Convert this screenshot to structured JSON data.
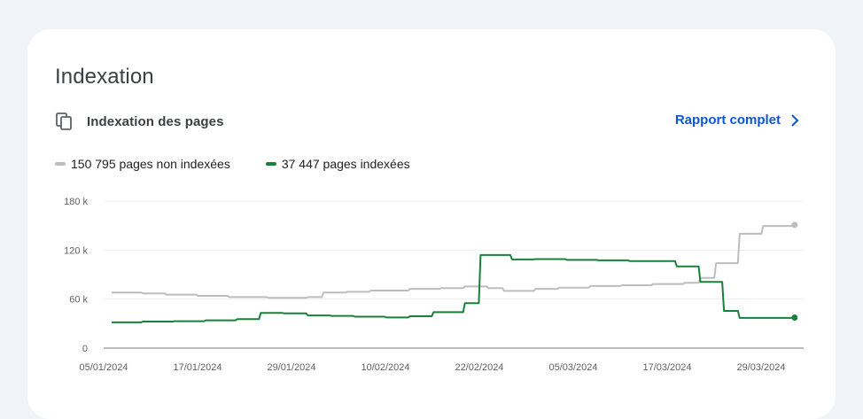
{
  "card": {
    "title": "Indexation",
    "section_label": "Indexation des pages",
    "report_link_label": "Rapport complet"
  },
  "legend": [
    {
      "label": "150 795 pages non indexées",
      "color": "#bdbdbd",
      "icon": "legend-dash"
    },
    {
      "label": "37 447 pages indexées",
      "color": "#188038",
      "icon": "legend-dash"
    }
  ],
  "colors": {
    "accent": "#0b57d0",
    "grid": "#eeeeee",
    "axis": "#757575",
    "tick_text": "#616161"
  },
  "icons": {
    "section": "pages-copy-icon",
    "link": "chevron-right-icon"
  },
  "chart_data": {
    "type": "line",
    "x_ticks": [
      "05/01/2024",
      "17/01/2024",
      "29/01/2024",
      "10/02/2024",
      "22/02/2024",
      "05/03/2024",
      "17/03/2024",
      "29/03/2024"
    ],
    "y_ticks": [
      "0",
      "60 k",
      "120 k",
      "180 k"
    ],
    "ylim": [
      0,
      180000
    ],
    "x_start": "2024-01-05",
    "x_end": "2024-04-01",
    "grid": true,
    "legend_position": "top-left",
    "series": [
      {
        "name": "pages non indexées",
        "color": "#bdbdbd",
        "points": [
          [
            "2024-01-05",
            68000
          ],
          [
            "2024-01-09",
            67000
          ],
          [
            "2024-01-12",
            65500
          ],
          [
            "2024-01-16",
            64000
          ],
          [
            "2024-01-20",
            62500
          ],
          [
            "2024-01-25",
            61500
          ],
          [
            "2024-01-30",
            62500
          ],
          [
            "2024-02-01",
            68000
          ],
          [
            "2024-02-04",
            69000
          ],
          [
            "2024-02-07",
            70500
          ],
          [
            "2024-02-12",
            72500
          ],
          [
            "2024-02-16",
            73500
          ],
          [
            "2024-02-19",
            75500
          ],
          [
            "2024-02-22",
            73500
          ],
          [
            "2024-02-24",
            70000
          ],
          [
            "2024-02-28",
            72500
          ],
          [
            "2024-03-02",
            74000
          ],
          [
            "2024-03-06",
            76000
          ],
          [
            "2024-03-10",
            77000
          ],
          [
            "2024-03-14",
            78500
          ],
          [
            "2024-03-18",
            80000
          ],
          [
            "2024-03-20",
            86000
          ],
          [
            "2024-03-22",
            104000
          ],
          [
            "2024-03-25",
            140000
          ],
          [
            "2024-03-28",
            149500
          ],
          [
            "2024-04-01",
            150795
          ]
        ]
      },
      {
        "name": "pages indexées",
        "color": "#188038",
        "points": [
          [
            "2024-01-05",
            31500
          ],
          [
            "2024-01-09",
            32500
          ],
          [
            "2024-01-13",
            33000
          ],
          [
            "2024-01-17",
            34000
          ],
          [
            "2024-01-21",
            35500
          ],
          [
            "2024-01-24",
            43000
          ],
          [
            "2024-01-27",
            42500
          ],
          [
            "2024-01-30",
            40000
          ],
          [
            "2024-02-02",
            39500
          ],
          [
            "2024-02-05",
            38500
          ],
          [
            "2024-02-09",
            37500
          ],
          [
            "2024-02-12",
            39000
          ],
          [
            "2024-02-15",
            44000
          ],
          [
            "2024-02-19",
            55000
          ],
          [
            "2024-02-21",
            114000
          ],
          [
            "2024-02-25",
            108500
          ],
          [
            "2024-02-28",
            109000
          ],
          [
            "2024-03-03",
            108000
          ],
          [
            "2024-03-07",
            107500
          ],
          [
            "2024-03-11",
            106500
          ],
          [
            "2024-03-15",
            106500
          ],
          [
            "2024-03-17",
            100000
          ],
          [
            "2024-03-20",
            81000
          ],
          [
            "2024-03-23",
            45500
          ],
          [
            "2024-03-25",
            37000
          ],
          [
            "2024-04-01",
            37447
          ]
        ]
      }
    ]
  }
}
